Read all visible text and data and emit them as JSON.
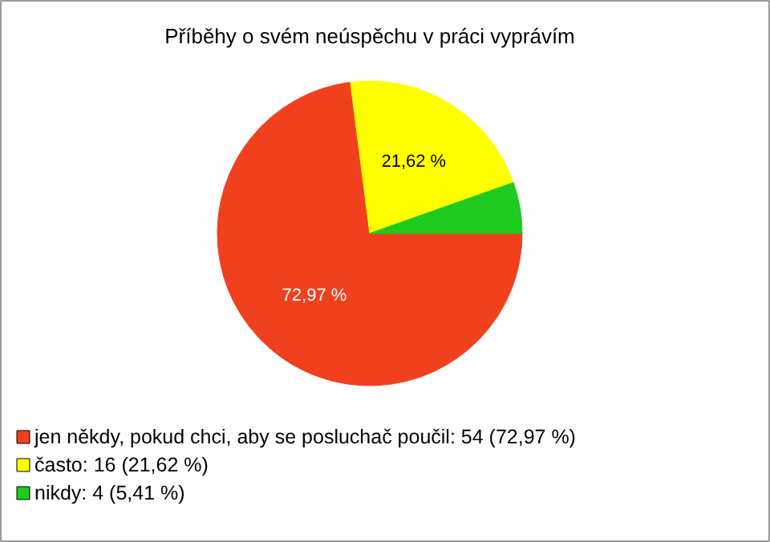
{
  "chart_data": {
    "type": "pie",
    "title": "Příběhy o svém neúspěchu v práci vyprávím",
    "categories": [
      "jen někdy, pokud chci, aby se posluchač poučil: 54 (72,97 %)",
      "často: 16 (21,62 %)",
      "nikdy: 4 (5,41 %)"
    ],
    "values": [
      72.97,
      21.62,
      5.41
    ],
    "colors": [
      "#f0401e",
      "#ffff00",
      "#1ecb1e"
    ],
    "value_labels": [
      "72,97 %",
      "21,62 %",
      null
    ],
    "legend": "bottom left"
  }
}
